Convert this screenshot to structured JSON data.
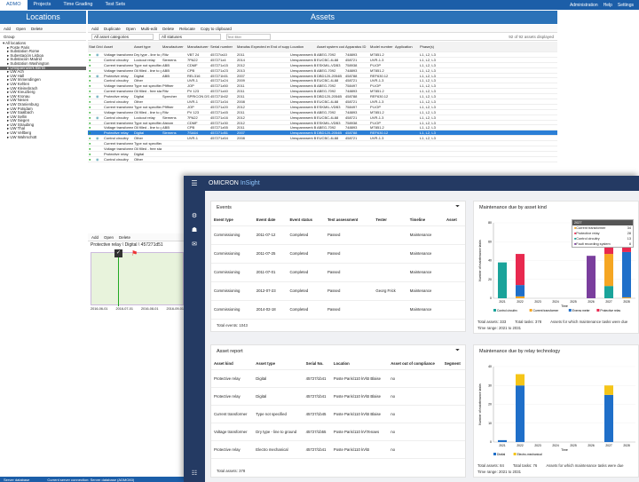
{
  "top": {
    "tabs": [
      "ADMO",
      "Projects",
      "Time Grading",
      "Test Sets"
    ],
    "right": [
      "Administration",
      "Help",
      "Settings"
    ]
  },
  "locations": {
    "title": "Locations",
    "toolbar": [
      "Add",
      "Open",
      "Delete"
    ],
    "group": "Group",
    "tree": [
      "All locations",
      "Poste Paris",
      "Substation Rome",
      "Subestación Lisboa",
      "Substación Madrid",
      "Substation Washington",
      "Umspannwerk Berlin",
      "UW Ach",
      "UW Hall",
      "UW Immendingen",
      "UW Kehlen",
      "UW Kleinebrach",
      "UW Kreuzberg",
      "UW Kronau",
      "UW Nesen",
      "UW Oranienburg",
      "UW Potsdam",
      "UW Saalbach",
      "UW Sellin",
      "UW Siegen",
      "UW Straubing",
      "UW Thal",
      "UW Vellberg",
      "UW Wahrschütt"
    ],
    "selected_index": 6
  },
  "assets": {
    "title": "Assets",
    "toolbar": [
      "Add",
      "Duplicate",
      "Open",
      "Multi-edit",
      "Delete",
      "Relocate",
      "Copy to clipboard"
    ],
    "filter1": "All asset categories",
    "filter2": "All statuses",
    "search_placeholder": "Text filter",
    "count": "92 of 92 assets displayed",
    "columns": [
      "Status",
      "Grid status",
      "Asset",
      "Asset type",
      "Manufacturer",
      "Manufacturer type",
      "Serial number",
      "Manufacturer year",
      "Expected end of life",
      "End of support",
      "Location",
      "Asset system code",
      "Apparatus ID",
      "Model number",
      "Application",
      "Phase(s)"
    ],
    "rows": [
      [
        "Voltage transformer",
        "Dry type - line to g",
        "Ritz",
        "VBT 24",
        "45727/a10",
        "2011",
        "",
        "",
        "Umspannwerk Berl",
        "ABEG-7092",
        "748893",
        "MT851.2",
        "",
        "L1, L2, L3"
      ],
      [
        "Control circuitry",
        "Lockout relay",
        "Siemens",
        "7PA22",
        "457271z4",
        "2014",
        "",
        "",
        "Umspannwerk Berl",
        "EUCBC-4L88",
        "458721",
        "UVR-1.3",
        "",
        "L1, L2, L3"
      ],
      [
        "Current transformer",
        "Type not specified",
        "ABB",
        "CDMF",
        "457271z15",
        "2012",
        "",
        "",
        "Umspannwerk Berl",
        "ESKMIL-VDB3",
        "758938",
        "PI-IOP",
        "",
        "L1, L2, L3"
      ],
      [
        "Voltage transformer",
        "Oil filled - line to g",
        "ABB",
        "CPB",
        "457271z23",
        "2013",
        "",
        "",
        "Umspannwerk Berl",
        "ABEG-7092",
        "748893",
        "MT851.2",
        "",
        "L1, L2, L3"
      ],
      [
        "Protective relay",
        "Digital",
        "ABB",
        "REL316",
        "457271b01",
        "2007",
        "",
        "",
        "Umspannwerk Berl",
        "DBD120-2054B",
        "458788",
        "REF630.12",
        "",
        "L1, L2, L3"
      ],
      [
        "Control circuitry",
        "Other",
        "",
        "UVR-1",
        "457271z24",
        "2009",
        "",
        "",
        "Umspannwerk Berl",
        "EUCBC-4L88",
        "458721",
        "UVR-1.3",
        "",
        "L1, L2, L3"
      ],
      [
        "Voltage transformer",
        "Type not specified",
        "Pfiffner",
        "JOP",
        "457271z50",
        "2011",
        "",
        "",
        "Umspannwerk Berl",
        "ABEG-7092",
        "758497",
        "PI-IOP",
        "",
        "L1, L2, L3"
      ],
      [
        "Current transformer",
        "Oil filled - free sta",
        "Ritz",
        "PV 123",
        "457271z40",
        "2011",
        "",
        "",
        "Umspannwerk Berl",
        "ABEG-7092",
        "748893",
        "MT851.2",
        "",
        "L1, L2, L3"
      ],
      [
        "Protective relay",
        "Digital",
        "Sprecher",
        "SPRICON DS.8",
        "457271b02",
        "2011",
        "",
        "",
        "Umspannwerk Berl",
        "DBD120-2054B",
        "458788",
        "REF630.12",
        "",
        "L1, L2, L3"
      ],
      [
        "Control circuitry",
        "Other",
        "",
        "UVR-1",
        "457271z34",
        "2008",
        "",
        "",
        "Umspannwerk Berl",
        "EUCBC-4L88",
        "458721",
        "UVR-1.3",
        "",
        "L1, L2, L3"
      ],
      [
        "Current transformer",
        "Type not specified",
        "Pfiffner",
        "JOP",
        "457271z20",
        "2012",
        "",
        "",
        "Umspannwerk Berl",
        "ESKMIL-VDB3",
        "758497",
        "PI-IOP",
        "",
        "L1, L2, L3"
      ],
      [
        "Voltage transformer",
        "Oil filled - line to g",
        "Ritz",
        "PV 123",
        "457271z45",
        "2011",
        "",
        "",
        "Umspannwerk Berl",
        "ABEG-7092",
        "748893",
        "MT851.2",
        "",
        "L1, L2, L3"
      ],
      [
        "Control circuitry",
        "Lockout relay",
        "Siemens",
        "7PA22",
        "457271z16",
        "2012",
        "",
        "",
        "Umspannwerk Berl",
        "EUCBC-4L88",
        "458721",
        "UVR-1.3",
        "",
        "L1, L2, L3"
      ],
      [
        "Current transformer",
        "Type not specified",
        "Alstom",
        "CDMF",
        "457271z30",
        "2012",
        "",
        "",
        "Umspannwerk Berl",
        "ESKMIL-VDB3",
        "758938",
        "PI-IOP",
        "",
        "L1, L2, L3"
      ],
      [
        "Voltage transformer",
        "Oil filled - line to g",
        "ABB",
        "CPB",
        "457271z55",
        "2011",
        "",
        "",
        "Umspannwerk Berl",
        "ABEG-7092",
        "748893",
        "MT851.2",
        "",
        "L1, L2, L3"
      ],
      [
        "Protective relay",
        "Digital",
        "Siemens",
        "7SA64",
        "457271d51",
        "2007",
        "",
        "",
        "Umspannwerk Berl",
        "DBD120-2054B",
        "458788",
        "REF630.12",
        "",
        "L1, L2, L3"
      ],
      [
        "Control circuitry",
        "Other",
        "",
        "UVR-1",
        "457271z54",
        "2008",
        "",
        "",
        "Umspannwerk Berl",
        "EUCBC-4L88",
        "458721",
        "UVR-1.3",
        "",
        "L1, L2, L3"
      ],
      [
        "Current transformer",
        "Type not specified",
        "",
        "",
        "",
        "",
        "",
        "",
        "",
        "",
        "",
        "",
        "",
        ""
      ],
      [
        "Voltage transformer",
        "Oil filled - free sta",
        "",
        "",
        "",
        "",
        "",
        "",
        "",
        "",
        "",
        "",
        "",
        ""
      ],
      [
        "Protective relay",
        "Digital",
        "",
        "",
        "",
        "",
        "",
        "",
        "",
        "",
        "",
        "",
        "",
        ""
      ],
      [
        "Control circuitry",
        "Other",
        "",
        "",
        "",
        "",
        "",
        "",
        "",
        "",
        "",
        "",
        "",
        ""
      ]
    ],
    "selected_row": 15
  },
  "detail": {
    "toolbar": [
      "Add",
      "Open",
      "Delete"
    ],
    "title": "Protective relay \\ Digital \\ 457271d51",
    "dates": [
      "2016-06-01",
      "2016-07-01",
      "2016-08-01",
      "2016-09-01"
    ]
  },
  "status": {
    "db": "Server database",
    "msg": "Current server connection: Server database (ADMO83)"
  },
  "insight": {
    "brand1": "OMICRON",
    "brand2": "InSight",
    "events": {
      "title": "Events",
      "columns": [
        "Event type",
        "Event date",
        "Event status",
        "Test assessment",
        "Tester",
        "Timeline",
        "Asset"
      ],
      "rows": [
        [
          "Commissioning",
          "2011-07-12",
          "Completed",
          "Passed",
          "",
          "Maintenance"
        ],
        [
          "Commissioning",
          "2011-07-25",
          "Completed",
          "Passed",
          "",
          "Maintenance"
        ],
        [
          "Commissioning",
          "2011-07-01",
          "Completed",
          "Passed",
          "",
          "Maintenance"
        ],
        [
          "Commissioning",
          "2012-07-23",
          "Completed",
          "Passed",
          "Georg Frick",
          "Maintenance"
        ],
        [
          "Commissioning",
          "2014-02-18",
          "Completed",
          "Passed",
          "",
          "Maintenance"
        ]
      ],
      "total": "Total events: 1043"
    },
    "assetreport": {
      "title": "Asset report",
      "columns": [
        "Asset kind",
        "Asset type",
        "Serial No.",
        "Location",
        "Asset out of compliance",
        "Segment"
      ],
      "rows": [
        [
          "Protective relay",
          "Digital",
          "45727/1b41",
          "Poste Paris\\110 kV\\B Blaise",
          "no"
        ],
        [
          "Protective relay",
          "Digital",
          "45727/1b41",
          "Poste Paris\\110 kV\\B Blaise",
          "no"
        ],
        [
          "Current transformer",
          "Type not specified",
          "45727/1b45",
          "Poste Paris\\110 kV\\B Blaise",
          "no"
        ],
        [
          "Voltage transformer",
          "Dry type - line to ground",
          "45727/1b55",
          "Poste Paris\\110 kV\\Tenaes",
          "no"
        ],
        [
          "Protective relay",
          "Electro mechanical",
          "45727/1b41",
          "Poste Paris\\110 kV\\B",
          "no"
        ]
      ],
      "total": "Total assets: 378"
    },
    "maint_kind": {
      "title": "Maintenance due by asset kind",
      "ylabel": "Number of maintenance tasks",
      "xlabel": "Time",
      "tooltip": {
        "head": "2027",
        "items": [
          [
            "Current transformer",
            "34"
          ],
          [
            "Protective relay",
            "28"
          ],
          [
            "Control circuitry",
            "13"
          ],
          [
            "Fault recording system",
            "8"
          ]
        ]
      },
      "legend": [
        "Control circuitry",
        "Current transformer",
        "Energy meter",
        "Fault recording system"
      ],
      "foot1": "Total assets: 333",
      "foot2": "Total tasks: 378",
      "foot3": "Assets for which maintenance tasks were due",
      "foot4": "Time range: 2021 to 2031"
    },
    "maint_relay": {
      "title": "Maintenance due by relay technology",
      "ylabel": "Number of maintenance tasks",
      "xlabel": "Time",
      "legend": [
        "Digital",
        "Electro-mechanical"
      ],
      "foot1": "Total assets: 84",
      "foot2": "Total tasks: 76",
      "foot3": "Assets for which maintenance tasks were due",
      "foot4": "Time range: 2021 to 2031"
    }
  },
  "chart_data": [
    {
      "type": "bar",
      "title": "Maintenance due by asset kind",
      "xlabel": "Time",
      "ylabel": "Number of maintenance tasks",
      "categories": [
        "2021",
        "2022",
        "2023",
        "2024",
        "2025",
        "2026",
        "2027",
        "2028"
      ],
      "ylim": [
        0,
        80
      ],
      "series": [
        {
          "name": "Control circuitry",
          "color": "#1aa39a",
          "values": [
            38,
            0,
            0,
            0,
            0,
            0,
            13,
            0
          ]
        },
        {
          "name": "Current transformer",
          "color": "#f5a623",
          "values": [
            0,
            2,
            0,
            0,
            0,
            0,
            34,
            1
          ]
        },
        {
          "name": "Energy meter",
          "color": "#1f6fc9",
          "values": [
            0,
            12,
            0,
            0,
            0,
            0,
            0,
            48
          ]
        },
        {
          "name": "Protective relay",
          "color": "#e8294f",
          "values": [
            0,
            33,
            0,
            0,
            0,
            0,
            28,
            8
          ]
        },
        {
          "name": "Fault recording system",
          "color": "#7a3e9d",
          "values": [
            0,
            0,
            0,
            0,
            0,
            45,
            8,
            0
          ]
        }
      ]
    },
    {
      "type": "bar",
      "title": "Maintenance due by relay technology",
      "xlabel": "Time",
      "ylabel": "Number of maintenance tasks",
      "categories": [
        "2021",
        "2022",
        "2023",
        "2024",
        "2025",
        "2026",
        "2027",
        "2028"
      ],
      "ylim": [
        0,
        40
      ],
      "series": [
        {
          "name": "Digital",
          "color": "#1f6fc9",
          "values": [
            1,
            30,
            0,
            0,
            0,
            0,
            25,
            0
          ]
        },
        {
          "name": "Electro-mechanical",
          "color": "#f5c518",
          "values": [
            0,
            6,
            0,
            0,
            0,
            0,
            5,
            0
          ]
        }
      ]
    }
  ]
}
